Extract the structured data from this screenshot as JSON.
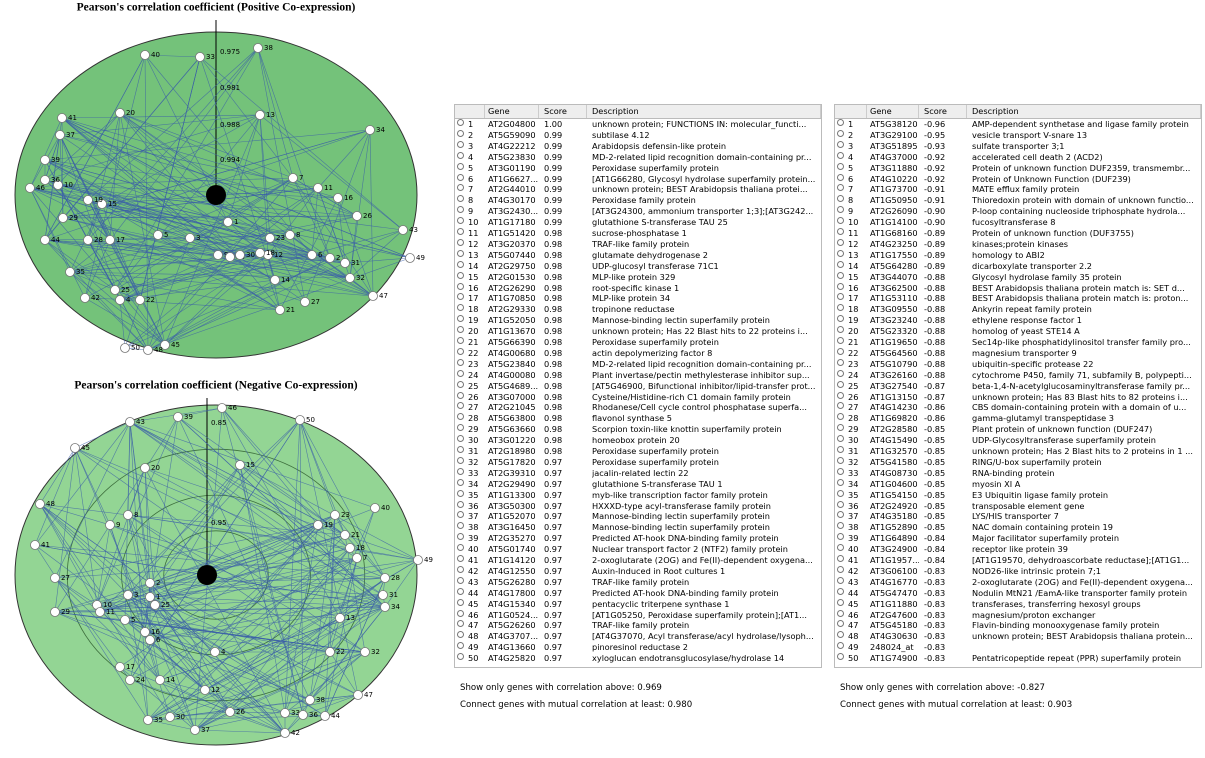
{
  "graphs": [
    {
      "title": "Pearson's correlation coefficient (Positive Co-expression)",
      "rings": [
        "0.975",
        "0.981",
        "0.988",
        "0.994"
      ],
      "nodes": [
        1,
        2,
        3,
        4,
        5,
        6,
        7,
        8,
        9,
        10,
        11,
        12,
        13,
        14,
        15,
        16,
        17,
        18,
        19,
        20,
        21,
        22,
        23,
        24,
        25,
        26,
        27,
        28,
        29,
        30,
        31,
        32,
        33,
        34,
        35,
        36,
        37,
        38,
        39,
        40,
        41,
        42,
        43,
        44,
        45,
        46,
        47,
        48,
        49,
        50
      ]
    },
    {
      "title": "Pearson's correlation coefficient (Negative Co-expression)",
      "rings": [
        "0.85",
        "0.95"
      ],
      "nodes": [
        1,
        2,
        3,
        4,
        5,
        6,
        7,
        8,
        9,
        10,
        11,
        12,
        13,
        14,
        15,
        16,
        17,
        18,
        19,
        20,
        21,
        22,
        23,
        24,
        25,
        26,
        27,
        28,
        29,
        30,
        31,
        32,
        33,
        34,
        35,
        36,
        37,
        38,
        39,
        40,
        41,
        42,
        43,
        44,
        45,
        46,
        47,
        48,
        49,
        50
      ]
    }
  ],
  "tables": [
    {
      "columns": [
        "Gene",
        "Score",
        "Description"
      ],
      "rows": [
        [
          1,
          "AT2G04800",
          "1.00",
          "unknown protein; FUNCTIONS IN: molecular_functi..."
        ],
        [
          2,
          "AT5G59090",
          "0.99",
          "subtilase 4.12"
        ],
        [
          3,
          "AT4G22212",
          "0.99",
          "Arabidopsis defensin-like protein"
        ],
        [
          4,
          "AT5G23830",
          "0.99",
          "MD-2-related lipid recognition domain-containing pr..."
        ],
        [
          5,
          "AT3G01190",
          "0.99",
          "Peroxidase superfamily protein"
        ],
        [
          6,
          "AT1G6627...",
          "0.99",
          "[AT1G66280, Glycosyl hydrolase superfamily protein..."
        ],
        [
          7,
          "AT2G44010",
          "0.99",
          "unknown protein; BEST Arabidopsis thaliana protei..."
        ],
        [
          8,
          "AT4G30170",
          "0.99",
          "Peroxidase family protein"
        ],
        [
          9,
          "AT3G2430...",
          "0.99",
          "[AT3G24300, ammonium transporter 1;3];[AT3G242..."
        ],
        [
          10,
          "AT1G17180",
          "0.99",
          "glutathione S-transferase TAU 25"
        ],
        [
          11,
          "AT1G51420",
          "0.98",
          "sucrose-phosphatase 1"
        ],
        [
          12,
          "AT3G20370",
          "0.98",
          "TRAF-like family protein"
        ],
        [
          13,
          "AT5G07440",
          "0.98",
          "glutamate dehydrogenase 2"
        ],
        [
          14,
          "AT2G29750",
          "0.98",
          "UDP-glucosyl transferase 71C1"
        ],
        [
          15,
          "AT2G01530",
          "0.98",
          "MLP-like protein 329"
        ],
        [
          16,
          "AT2G26290",
          "0.98",
          "root-specific kinase 1"
        ],
        [
          17,
          "AT1G70850",
          "0.98",
          "MLP-like protein 34"
        ],
        [
          18,
          "AT2G29330",
          "0.98",
          "tropinone reductase"
        ],
        [
          19,
          "AT1G52050",
          "0.98",
          "Mannose-binding lectin superfamily protein"
        ],
        [
          20,
          "AT1G13670",
          "0.98",
          "unknown protein; Has 22 Blast hits to 22 proteins i..."
        ],
        [
          21,
          "AT5G66390",
          "0.98",
          "Peroxidase superfamily protein"
        ],
        [
          22,
          "AT4G00680",
          "0.98",
          "actin depolymerizing factor 8"
        ],
        [
          23,
          "AT5G23840",
          "0.98",
          "MD-2-related lipid recognition domain-containing pr..."
        ],
        [
          24,
          "AT4G00080",
          "0.98",
          "Plant invertase/pectin methylesterase inhibitor sup..."
        ],
        [
          25,
          "AT5G4689...",
          "0.98",
          "[AT5G46900, Bifunctional inhibitor/lipid-transfer prot..."
        ],
        [
          26,
          "AT3G07000",
          "0.98",
          "Cysteine/Histidine-rich C1 domain family protein"
        ],
        [
          27,
          "AT2G21045",
          "0.98",
          "Rhodanese/Cell cycle control phosphatase superfa..."
        ],
        [
          28,
          "AT5G63800",
          "0.98",
          "flavonol synthase 5"
        ],
        [
          29,
          "AT5G63660",
          "0.98",
          "Scorpion toxin-like knottin superfamily protein"
        ],
        [
          30,
          "AT3G01220",
          "0.98",
          "homeobox protein 20"
        ],
        [
          31,
          "AT2G18980",
          "0.98",
          "Peroxidase superfamily protein"
        ],
        [
          32,
          "AT5G17820",
          "0.97",
          "Peroxidase superfamily protein"
        ],
        [
          33,
          "AT2G39310",
          "0.97",
          "jacalin-related lectin 22"
        ],
        [
          34,
          "AT2G29490",
          "0.97",
          "glutathione S-transferase TAU 1"
        ],
        [
          35,
          "AT1G13300",
          "0.97",
          "myb-like transcription factor family protein"
        ],
        [
          36,
          "AT3G50300",
          "0.97",
          "HXXXD-type acyl-transferase family protein"
        ],
        [
          37,
          "AT1G52070",
          "0.97",
          "Mannose-binding lectin superfamily protein"
        ],
        [
          38,
          "AT3G16450",
          "0.97",
          "Mannose-binding lectin superfamily protein"
        ],
        [
          39,
          "AT2G35270",
          "0.97",
          "Predicted AT-hook DNA-binding family protein"
        ],
        [
          40,
          "AT5G01740",
          "0.97",
          "Nuclear transport factor 2 (NTF2) family protein"
        ],
        [
          41,
          "AT1G14120",
          "0.97",
          "2-oxoglutarate (2OG) and Fe(II)-dependent oxygena..."
        ],
        [
          42,
          "AT4G12550",
          "0.97",
          "Auxin-Induced in Root cultures 1"
        ],
        [
          43,
          "AT5G26280",
          "0.97",
          "TRAF-like family protein"
        ],
        [
          44,
          "AT4G17800",
          "0.97",
          "Predicted AT-hook DNA-binding family protein"
        ],
        [
          45,
          "AT4G15340",
          "0.97",
          "pentacyclic triterpene synthase 1"
        ],
        [
          46,
          "AT1G0524...",
          "0.97",
          "[AT1G05250, Peroxidase superfamily protein];[AT1..."
        ],
        [
          47,
          "AT5G26260",
          "0.97",
          "TRAF-like family protein"
        ],
        [
          48,
          "AT4G3707...",
          "0.97",
          "[AT4G37070, Acyl transferase/acyl hydrolase/lysoph..."
        ],
        [
          49,
          "AT4G13660",
          "0.97",
          "pinoresinol reductase 2"
        ],
        [
          50,
          "AT4G25820",
          "0.97",
          "xyloglucan endotransglucosylase/hydrolase 14"
        ]
      ],
      "filter": "Show only genes with correlation above: 0.969",
      "connect": "Connect genes with mutual correlation at least: 0.980"
    },
    {
      "columns": [
        "Gene",
        "Score",
        "Description"
      ],
      "rows": [
        [
          1,
          "AT5G38120",
          "-0.96",
          "AMP-dependent synthetase and ligase family protein"
        ],
        [
          2,
          "AT3G29100",
          "-0.95",
          "vesicle transport V-snare 13"
        ],
        [
          3,
          "AT3G51895",
          "-0.93",
          "sulfate transporter 3;1"
        ],
        [
          4,
          "AT4G37000",
          "-0.92",
          "accelerated cell death 2 (ACD2)"
        ],
        [
          5,
          "AT3G11880",
          "-0.92",
          "Protein of unknown function DUF2359, transmembr..."
        ],
        [
          6,
          "AT4G10220",
          "-0.92",
          "Protein of Unknown Function (DUF239)"
        ],
        [
          7,
          "AT1G73700",
          "-0.91",
          "MATE efflux family protein"
        ],
        [
          8,
          "AT1G50950",
          "-0.91",
          "Thioredoxin protein with domain of unknown functio..."
        ],
        [
          9,
          "AT2G26090",
          "-0.90",
          "P-loop containing nucleoside triphosphate hydrola..."
        ],
        [
          10,
          "AT1G14100",
          "-0.90",
          "fucosyltransferase 8"
        ],
        [
          11,
          "AT1G68160",
          "-0.89",
          "Protein of unknown function (DUF3755)"
        ],
        [
          12,
          "AT4G23250",
          "-0.89",
          "kinases;protein kinases"
        ],
        [
          13,
          "AT1G17550",
          "-0.89",
          "homology to ABI2"
        ],
        [
          14,
          "AT5G64280",
          "-0.89",
          "dicarboxylate transporter 2.2"
        ],
        [
          15,
          "AT3G44070",
          "-0.88",
          "Glycosyl hydrolase family 35 protein"
        ],
        [
          16,
          "AT3G62500",
          "-0.88",
          "BEST Arabidopsis thaliana protein match is: SET d..."
        ],
        [
          17,
          "AT1G53110",
          "-0.88",
          "BEST Arabidopsis thaliana protein match is: proton..."
        ],
        [
          18,
          "AT3G09550",
          "-0.88",
          "Ankyrin repeat family protein"
        ],
        [
          19,
          "AT3G23240",
          "-0.88",
          "ethylene response factor 1"
        ],
        [
          20,
          "AT5G23320",
          "-0.88",
          "homolog of yeast STE14 A"
        ],
        [
          21,
          "AT1G19650",
          "-0.88",
          "Sec14p-like phosphatidylinositol transfer family pro..."
        ],
        [
          22,
          "AT5G64560",
          "-0.88",
          "magnesium transporter 9"
        ],
        [
          23,
          "AT5G10790",
          "-0.88",
          "ubiquitin-specific protease 22"
        ],
        [
          24,
          "AT3G26160",
          "-0.88",
          "cytochrome P450, family 71, subfamily B, polypepti..."
        ],
        [
          25,
          "AT3G27540",
          "-0.87",
          "beta-1,4-N-acetylglucosaminyltransferase family pr..."
        ],
        [
          26,
          "AT1G13150",
          "-0.87",
          "unknown protein; Has 83 Blast hits to 82 proteins i..."
        ],
        [
          27,
          "AT4G14230",
          "-0.86",
          "CBS domain-containing protein with a domain of u..."
        ],
        [
          28,
          "AT1G69820",
          "-0.86",
          "gamma-glutamyl transpeptidase 3"
        ],
        [
          29,
          "AT2G28580",
          "-0.85",
          "Plant protein of unknown function (DUF247)"
        ],
        [
          30,
          "AT4G15490",
          "-0.85",
          "UDP-Glycosyltransferase superfamily protein"
        ],
        [
          31,
          "AT1G32570",
          "-0.85",
          "unknown protein; Has 2 Blast hits to 2 proteins in 1 ..."
        ],
        [
          32,
          "AT5G41580",
          "-0.85",
          "RING/U-box superfamily protein"
        ],
        [
          33,
          "AT4G08730",
          "-0.85",
          "RNA-binding protein"
        ],
        [
          34,
          "AT1G04600",
          "-0.85",
          "myosin XI A"
        ],
        [
          35,
          "AT1G54150",
          "-0.85",
          "E3 Ubiquitin ligase family protein"
        ],
        [
          36,
          "AT2G24920",
          "-0.85",
          "transposable element gene"
        ],
        [
          37,
          "AT4G35180",
          "-0.85",
          "LYS/HIS transporter 7"
        ],
        [
          38,
          "AT1G52890",
          "-0.85",
          "NAC domain containing protein 19"
        ],
        [
          39,
          "AT1G64890",
          "-0.84",
          "Major facilitator superfamily protein"
        ],
        [
          40,
          "AT3G24900",
          "-0.84",
          "receptor like protein 39"
        ],
        [
          41,
          "AT1G1957...",
          "-0.84",
          "[AT1G19570, dehydroascorbate reductase];[AT1G1..."
        ],
        [
          42,
          "AT3G06100",
          "-0.83",
          "NOD26-like intrinsic protein 7;1"
        ],
        [
          43,
          "AT4G16770",
          "-0.83",
          "2-oxoglutarate (2OG) and Fe(II)-dependent oxygena..."
        ],
        [
          44,
          "AT5G47470",
          "-0.83",
          "Nodulin MtN21 /EamA-like transporter family protein"
        ],
        [
          45,
          "AT1G11880",
          "-0.83",
          "transferases, transferring hexosyl groups"
        ],
        [
          46,
          "AT2G47600",
          "-0.83",
          "magnesium/proton exchanger"
        ],
        [
          47,
          "AT5G45180",
          "-0.83",
          "Flavin-binding monooxygenase family protein"
        ],
        [
          48,
          "AT4G30630",
          "-0.83",
          "unknown protein; BEST Arabidopsis thaliana protein..."
        ],
        [
          49,
          "248024_at",
          "-0.83"
        ],
        [
          50,
          "AT1G74900",
          "-0.83",
          "Pentatricopeptide repeat (PPR) superfamily protein"
        ]
      ],
      "filter": "Show only genes with correlation above: -0.827",
      "connect": "Connect genes with mutual correlation at least: 0.903"
    }
  ]
}
